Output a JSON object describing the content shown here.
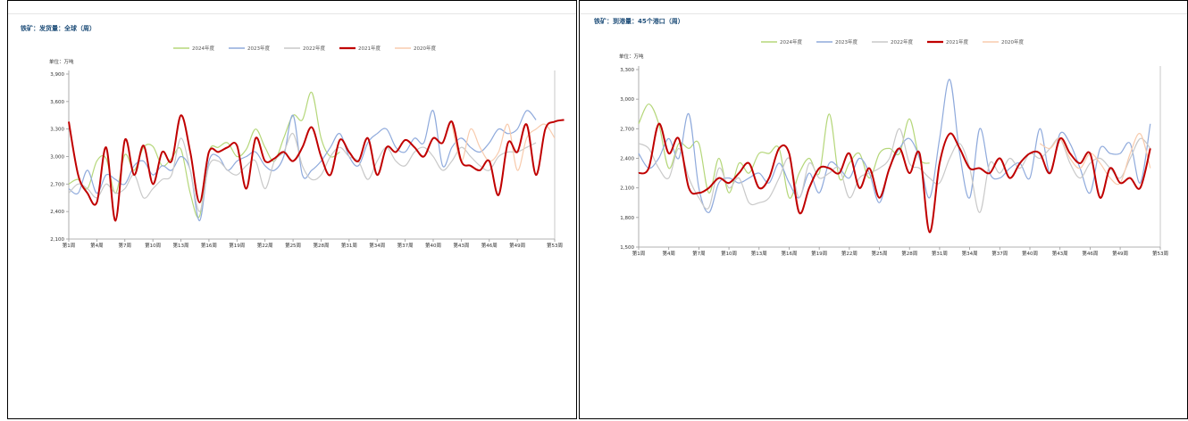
{
  "panels": [
    {
      "title": "铁矿：发货量：全球（周）",
      "unit_label": "单位：万吨"
    },
    {
      "title": "铁矿：到港量：45个港口（周）",
      "unit_label": "单位：万吨"
    }
  ],
  "chart_data": [
    {
      "type": "line",
      "title": "铁矿：发货量：全球（周）",
      "ylabel": "单位：万吨",
      "ylim": [
        2100,
        3900
      ],
      "yticks": [
        2100,
        2400,
        2700,
        3000,
        3300,
        3600,
        3900
      ],
      "ytick_labels": [
        "2,100",
        "2,400",
        "2,700",
        "3,000",
        "3,300",
        "3,600",
        "3,900"
      ],
      "xlim": [
        1,
        53
      ],
      "xticks": [
        1,
        4,
        7,
        10,
        13,
        16,
        19,
        22,
        25,
        28,
        31,
        34,
        37,
        40,
        43,
        46,
        49,
        53
      ],
      "xtick_labels": [
        "第1周",
        "第4周",
        "第7周",
        "第10周",
        "第13周",
        "第16周",
        "第19周",
        "第22周",
        "第25周",
        "第28周",
        "第31周",
        "第34周",
        "第37周",
        "第40周",
        "第43周",
        "第46周",
        "第49周",
        "第53周"
      ],
      "legend_position": "top-center",
      "series": [
        {
          "name": "2024年度",
          "color": "#b5d77a",
          "width": 1.2,
          "values": [
            2700,
            2750,
            2650,
            2950,
            2980,
            2600,
            3020,
            2850,
            3100,
            3110,
            2900,
            2980,
            3080,
            2600,
            2350,
            3050,
            3100,
            3150,
            3000,
            3080,
            3300,
            3100,
            2950,
            3200,
            3450,
            3400,
            3700,
            3200,
            3000,
            3050
          ]
        },
        {
          "name": "2023年度",
          "color": "#8faadc",
          "width": 1.2,
          "values": [
            2650,
            2600,
            2850,
            2600,
            2800,
            2750,
            2700,
            2900,
            2950,
            2800,
            2900,
            2850,
            3000,
            2850,
            2300,
            2950,
            3000,
            2850,
            2950,
            3000,
            3050,
            2900,
            2850,
            3000,
            3450,
            2800,
            2850,
            2950,
            3100,
            3250,
            3000,
            2900,
            3150,
            3250,
            3300,
            3100,
            3050,
            3200,
            3150,
            3500,
            2900,
            3100,
            3200,
            3100,
            3050,
            3150,
            3300,
            3250,
            3300,
            3500,
            3400
          ]
        },
        {
          "name": "2022年度",
          "color": "#c9c9c9",
          "width": 1.2,
          "values": [
            2600,
            2700,
            2650,
            2550,
            2700,
            2600,
            2650,
            2800,
            2550,
            2650,
            2750,
            2800,
            3200,
            2850,
            2400,
            2900,
            2950,
            2850,
            2800,
            2900,
            2950,
            2650,
            2950,
            3050,
            3250,
            2900,
            2750,
            2800,
            3000,
            3100,
            3000,
            2950,
            2750,
            2950,
            3100,
            2950,
            2900,
            3050,
            3100,
            3000,
            2850,
            2950,
            3100,
            3000,
            2900,
            2850,
            3000,
            3050,
            3050,
            3100,
            3150
          ]
        },
        {
          "name": "2021年度",
          "color": "#c00000",
          "width": 2,
          "values": [
            3380,
            2800,
            2600,
            2500,
            3100,
            2300,
            3180,
            2800,
            3120,
            2700,
            3050,
            2950,
            3450,
            3050,
            2500,
            3050,
            3050,
            3100,
            3120,
            2650,
            3200,
            2950,
            2980,
            3050,
            2950,
            3100,
            3320,
            3000,
            2800,
            3180,
            3050,
            2950,
            3200,
            2800,
            3100,
            3050,
            3180,
            3100,
            3000,
            3200,
            3150,
            3380,
            2950,
            2900,
            2850,
            2950,
            2580,
            3150,
            3050,
            3350,
            2800,
            3300,
            3380,
            3400
          ]
        },
        {
          "name": "2020年度",
          "color": "#f8cbad",
          "width": 1.2,
          "values": [
            null,
            null,
            null,
            null,
            null,
            null,
            null,
            null,
            null,
            null,
            null,
            null,
            null,
            null,
            null,
            null,
            null,
            null,
            null,
            null,
            null,
            null,
            null,
            null,
            null,
            null,
            null,
            null,
            null,
            null,
            null,
            null,
            null,
            null,
            null,
            null,
            null,
            null,
            null,
            null,
            null,
            3350,
            2950,
            3300,
            3100,
            2950,
            3050,
            3350,
            2850,
            3200,
            3300,
            3350,
            3200
          ]
        }
      ]
    },
    {
      "type": "line",
      "title": "铁矿：到港量：45个港口（周）",
      "ylabel": "单位：万吨",
      "ylim": [
        1500,
        3300
      ],
      "yticks": [
        1500,
        1800,
        2100,
        2400,
        2700,
        3000,
        3300
      ],
      "ytick_labels": [
        "1,500",
        "1,800",
        "2,100",
        "2,400",
        "2,700",
        "3,000",
        "3,300"
      ],
      "xlim": [
        1,
        53
      ],
      "xticks": [
        1,
        4,
        7,
        10,
        13,
        16,
        19,
        22,
        25,
        28,
        31,
        34,
        37,
        40,
        43,
        46,
        49,
        53
      ],
      "xtick_labels": [
        "第1周",
        "第4周",
        "第7周",
        "第10周",
        "第13周",
        "第16周",
        "第19周",
        "第22周",
        "第25周",
        "第28周",
        "第31周",
        "第34周",
        "第37周",
        "第40周",
        "第43周",
        "第46周",
        "第49周",
        "第53周"
      ],
      "legend_position": "top-center",
      "series": [
        {
          "name": "2024年度",
          "color": "#b5d77a",
          "width": 1.2,
          "values": [
            2750,
            2950,
            2750,
            2300,
            2550,
            2500,
            2550,
            2050,
            2400,
            2050,
            2350,
            2250,
            2450,
            2450,
            2500,
            2000,
            2250,
            2400,
            2250,
            2850,
            2200,
            2350,
            2450,
            2200,
            2450,
            2500,
            2450,
            2800,
            2400,
            2350
          ]
        },
        {
          "name": "2023年度",
          "color": "#8faadc",
          "width": 1.2,
          "values": [
            2450,
            2300,
            2400,
            2600,
            2400,
            2850,
            2100,
            1850,
            2150,
            2200,
            2150,
            2200,
            2250,
            2150,
            2350,
            2150,
            2000,
            2250,
            2050,
            2350,
            2300,
            2200,
            2400,
            2250,
            1950,
            2300,
            2500,
            2600,
            2400,
            2000,
            2600,
            3200,
            2450,
            2000,
            2700,
            2250,
            2200,
            2300,
            2350,
            2200,
            2700,
            2250,
            2650,
            2550,
            2300,
            2050,
            2500,
            2450,
            2450,
            2550,
            2150,
            2750
          ]
        },
        {
          "name": "2022年度",
          "color": "#c9c9c9",
          "width": 1.2,
          "values": [
            2550,
            2500,
            2300,
            2200,
            2500,
            2200,
            2000,
            1900,
            2300,
            2100,
            2200,
            1950,
            1950,
            2000,
            2200,
            2400,
            2000,
            2350,
            2200,
            2250,
            2300,
            2000,
            2200,
            2250,
            2300,
            2400,
            2700,
            2350,
            2300,
            2200,
            2150,
            2400,
            2550,
            2300,
            1850,
            2350,
            2250,
            2400,
            2300,
            2450,
            2400,
            2500,
            2600,
            2350,
            2200,
            2350,
            2400,
            2300,
            2200,
            2400,
            2600,
            2500
          ]
        },
        {
          "name": "2021年度",
          "color": "#c00000",
          "width": 2,
          "values": [
            2250,
            2300,
            2750,
            2450,
            2600,
            2100,
            2050,
            2100,
            2200,
            2150,
            2250,
            2350,
            2100,
            2200,
            2500,
            2450,
            1850,
            2100,
            2300,
            2300,
            2250,
            2450,
            2100,
            2300,
            2000,
            2300,
            2500,
            2250,
            2450,
            1650,
            2350,
            2650,
            2500,
            2300,
            2300,
            2250,
            2400,
            2200,
            2350,
            2450,
            2450,
            2250,
            2600,
            2450,
            2350,
            2450,
            2000,
            2300,
            2150,
            2200,
            2100,
            2500
          ]
        },
        {
          "name": "2020年度",
          "color": "#f8cbad",
          "width": 1.2,
          "values": [
            null,
            null,
            null,
            null,
            null,
            null,
            null,
            null,
            null,
            null,
            null,
            null,
            null,
            null,
            null,
            null,
            null,
            null,
            null,
            null,
            null,
            null,
            null,
            null,
            null,
            null,
            null,
            null,
            null,
            null,
            null,
            null,
            null,
            null,
            null,
            null,
            null,
            null,
            null,
            null,
            2550,
            2500,
            2600,
            2400,
            2300,
            2450,
            2350,
            2200,
            2150,
            2450,
            2650,
            2300
          ]
        }
      ]
    }
  ]
}
